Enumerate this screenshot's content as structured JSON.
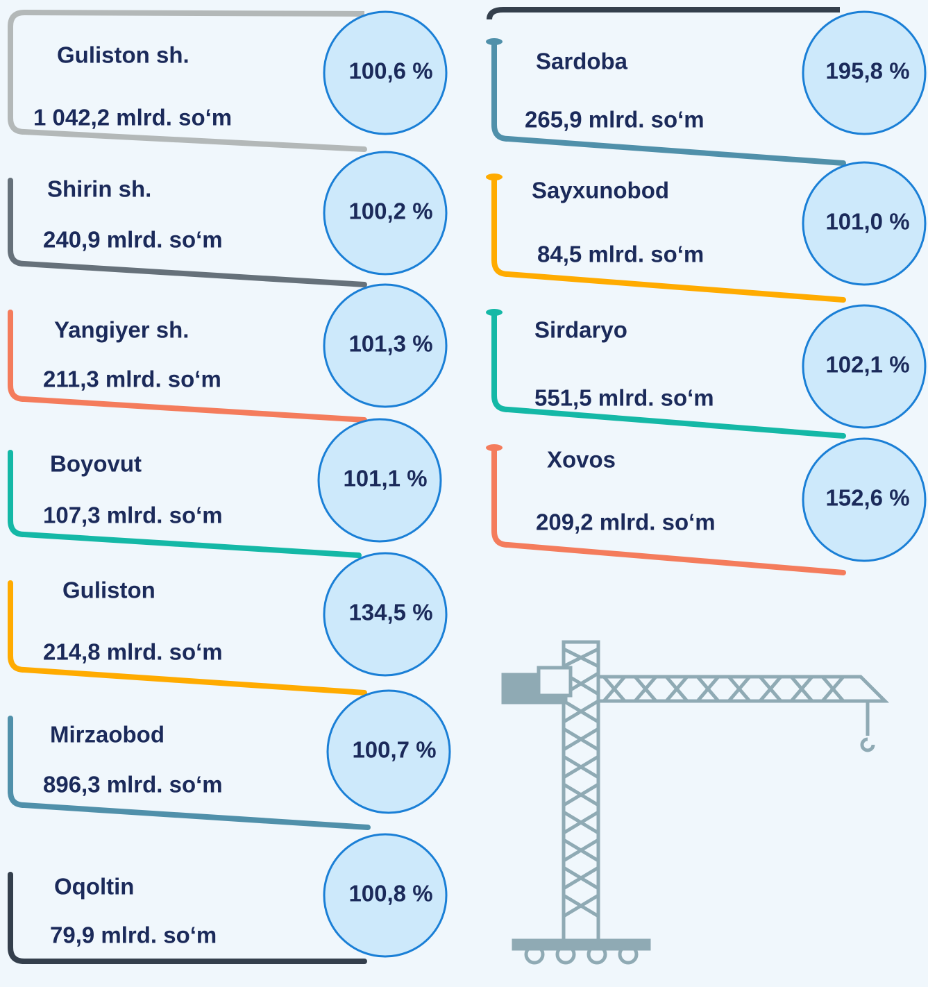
{
  "left": [
    {
      "name": "Guliston sh.",
      "amount": "1 042,2 mlrd. so‘m",
      "percent": "100,6 %",
      "color": "#b3b8b8"
    },
    {
      "name": "Shirin sh.",
      "amount": "240,9 mlrd. so‘m",
      "percent": "100,2 %",
      "color": "#66717a"
    },
    {
      "name": "Yangiyer sh.",
      "amount": "211,3 mlrd. so‘m",
      "percent": "101,3 %",
      "color": "#f47c5c"
    },
    {
      "name": "Boyovut",
      "amount": "107,3 mlrd. so‘m",
      "percent": "101,1 %",
      "color": "#14b8a6"
    },
    {
      "name": "Guliston",
      "amount": "214,8 mlrd. so‘m",
      "percent": "134,5 %",
      "color": "#ffab00"
    },
    {
      "name": "Mirzaobod",
      "amount": "896,3 mlrd. so‘m",
      "percent": "100,7 %",
      "color": "#5090aa"
    },
    {
      "name": "Oqoltin",
      "amount": "79,9 mlrd. so‘m",
      "percent": "100,8 %",
      "color": "#343f4c"
    }
  ],
  "right": [
    {
      "name": "Sardoba",
      "amount": "265,9 mlrd. so‘m",
      "percent": "195,8 %",
      "color": "#5090aa"
    },
    {
      "name": "Sayxunobod",
      "amount": "84,5 mlrd. so‘m",
      "percent": "101,0 %",
      "color": "#ffab00"
    },
    {
      "name": "Sirdaryo",
      "amount": "551,5 mlrd. so‘m",
      "percent": "102,1 %",
      "color": "#14b8a6"
    },
    {
      "name": "Xovos",
      "amount": "209,2 mlrd. so‘m",
      "percent": "152,6 %",
      "color": "#f47c5c"
    }
  ]
}
